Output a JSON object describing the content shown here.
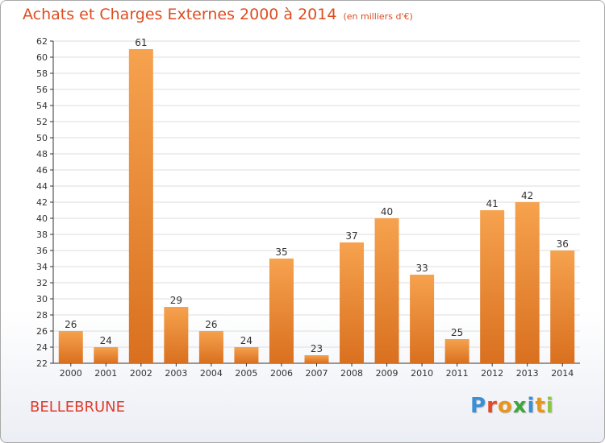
{
  "title": "Achats et Charges Externes 2000 à 2014",
  "subtitle": "(en milliers d'€)",
  "commune": "BELLEBRUNE",
  "logo": {
    "letters": [
      "P",
      "r",
      "o",
      "x",
      "i",
      "t",
      "i"
    ],
    "colors": [
      "#3a8fd6",
      "#e24a2a",
      "#e8961a",
      "#3aa83a",
      "#3a8fd6",
      "#e8961a",
      "#8cc63f"
    ]
  },
  "colors": {
    "title": "#dd4d20",
    "commune": "#e03c2c",
    "bar_light": "#f6a24e",
    "bar_dark": "#d9701f",
    "grid": "#dddddd",
    "axis": "#333333"
  },
  "chart_data": {
    "type": "bar",
    "categories": [
      "2000",
      "2001",
      "2002",
      "2003",
      "2004",
      "2005",
      "2006",
      "2007",
      "2008",
      "2009",
      "2010",
      "2011",
      "2012",
      "2013",
      "2014"
    ],
    "values": [
      26,
      24,
      61,
      29,
      26,
      24,
      35,
      23,
      37,
      40,
      33,
      25,
      41,
      42,
      36
    ],
    "ylim": [
      22,
      62
    ],
    "ytick_step": 2,
    "grid": true
  }
}
